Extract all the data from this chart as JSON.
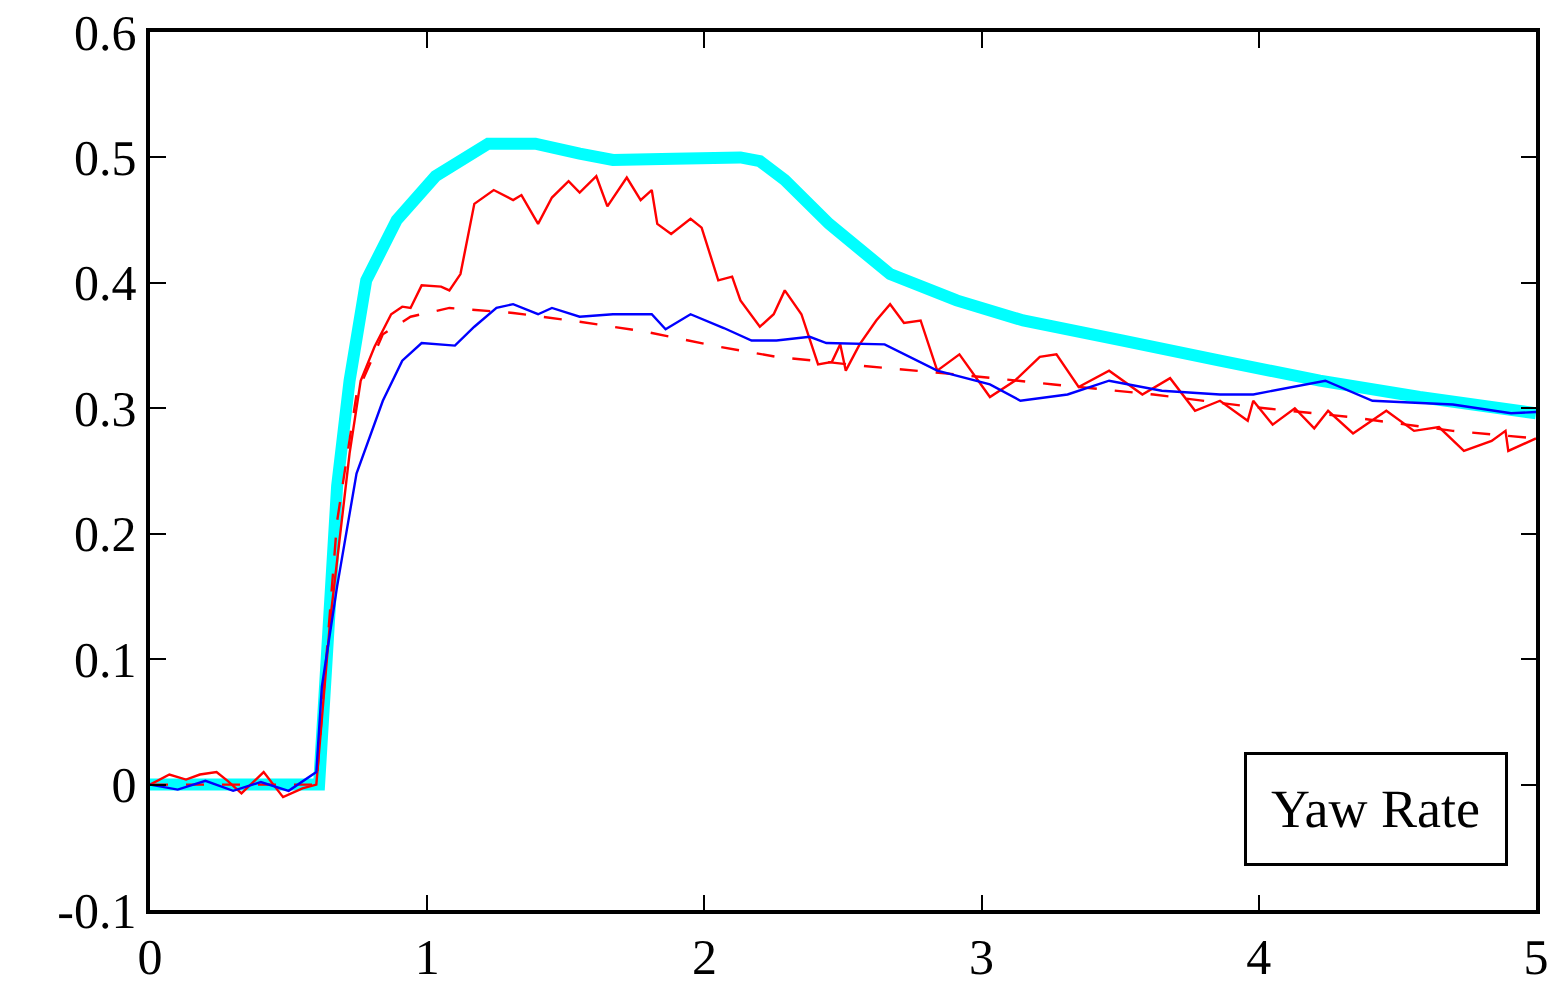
{
  "chart_data": {
    "type": "line",
    "xlim": [
      0,
      5
    ],
    "ylim": [
      -0.1,
      0.6
    ],
    "xticks": [
      0,
      1,
      2,
      3,
      4,
      5
    ],
    "yticks": [
      -0.1,
      0,
      0.1,
      0.2,
      0.3,
      0.4,
      0.5,
      0.6
    ],
    "marker": "none",
    "annotations": [
      "Yaw Rate"
    ],
    "series": [
      {
        "color": "#00ffff",
        "line_style": "solid",
        "x": [
          0,
          0.3,
          0.61,
          0.675,
          0.72,
          0.78,
          0.89,
          1.03,
          1.22,
          1.39,
          1.55,
          1.67,
          1.89,
          2.13,
          2.2,
          2.29,
          2.45,
          2.67,
          2.91,
          3.15,
          3.51,
          3.86,
          4.22,
          4.58,
          5
        ],
        "values": [
          0,
          0,
          0,
          0.238,
          0.322,
          0.402,
          0.45,
          0.485,
          0.511,
          0.511,
          0.503,
          0.498,
          0.499,
          0.5,
          0.497,
          0.482,
          0.447,
          0.407,
          0.386,
          0.37,
          0.354,
          0.338,
          0.322,
          0.309,
          0.296
        ]
      },
      {
        "color": "#ff0000",
        "line_style": "solid",
        "x": [
          0,
          0.07,
          0.13,
          0.18,
          0.24,
          0.28,
          0.33,
          0.41,
          0.48,
          0.55,
          0.6,
          0.65,
          0.72,
          0.76,
          0.81,
          0.87,
          0.91,
          0.94,
          0.98,
          1.05,
          1.08,
          1.12,
          1.17,
          1.24,
          1.31,
          1.34,
          1.4,
          1.45,
          1.51,
          1.55,
          1.61,
          1.65,
          1.72,
          1.77,
          1.81,
          1.83,
          1.88,
          1.95,
          1.99,
          2.05,
          2.1,
          2.13,
          2.2,
          2.25,
          2.29,
          2.35,
          2.41,
          2.46,
          2.49,
          2.51,
          2.56,
          2.62,
          2.67,
          2.72,
          2.78,
          2.84,
          2.92,
          3.03,
          3.12,
          3.21,
          3.27,
          3.35,
          3.46,
          3.58,
          3.68,
          3.77,
          3.86,
          3.96,
          3.98,
          4.05,
          4.13,
          4.2,
          4.25,
          4.34,
          4.46,
          4.56,
          4.65,
          4.74,
          4.84,
          4.89,
          4.9,
          5
        ],
        "values": [
          0,
          0.008,
          0.004,
          0.008,
          0.01,
          0.003,
          -0.007,
          0.01,
          -0.01,
          -0.003,
          0,
          0.131,
          0.264,
          0.322,
          0.349,
          0.375,
          0.381,
          0.38,
          0.398,
          0.397,
          0.394,
          0.407,
          0.463,
          0.474,
          0.466,
          0.47,
          0.447,
          0.468,
          0.481,
          0.472,
          0.485,
          0.461,
          0.484,
          0.466,
          0.474,
          0.447,
          0.439,
          0.451,
          0.444,
          0.402,
          0.405,
          0.386,
          0.365,
          0.375,
          0.394,
          0.375,
          0.335,
          0.337,
          0.351,
          0.33,
          0.351,
          0.37,
          0.383,
          0.368,
          0.37,
          0.33,
          0.343,
          0.309,
          0.322,
          0.341,
          0.343,
          0.317,
          0.33,
          0.311,
          0.324,
          0.298,
          0.306,
          0.29,
          0.306,
          0.287,
          0.3,
          0.284,
          0.298,
          0.28,
          0.298,
          0.282,
          0.285,
          0.266,
          0.274,
          0.282,
          0.266,
          0.276
        ]
      },
      {
        "color": "#ff0000",
        "line_style": "dashed",
        "x": [
          0,
          0.3,
          0.6,
          0.675,
          0.745,
          0.84,
          0.94,
          1.08,
          1.31,
          1.55,
          1.79,
          2.03,
          2.26,
          2.44,
          2.56,
          2.91,
          3.26,
          3.62,
          3.98,
          4.33,
          4.7,
          5
        ],
        "values": [
          0,
          0,
          0,
          0.21,
          0.311,
          0.359,
          0.373,
          0.38,
          0.376,
          0.369,
          0.361,
          0.35,
          0.341,
          0.337,
          0.334,
          0.327,
          0.319,
          0.311,
          0.301,
          0.293,
          0.282,
          0.276
        ]
      },
      {
        "color": "#0000ff",
        "line_style": "solid",
        "x": [
          0,
          0.1,
          0.2,
          0.3,
          0.4,
          0.5,
          0.6,
          0.62,
          0.675,
          0.745,
          0.84,
          0.91,
          0.98,
          1.1,
          1.17,
          1.25,
          1.31,
          1.4,
          1.45,
          1.55,
          1.67,
          1.81,
          1.86,
          1.95,
          2.07,
          2.17,
          2.26,
          2.38,
          2.44,
          2.65,
          2.84,
          3.03,
          3.14,
          3.31,
          3.46,
          3.65,
          3.86,
          3.98,
          4.24,
          4.41,
          4.7,
          4.91,
          5
        ],
        "values": [
          0,
          -0.004,
          0.003,
          -0.005,
          0.002,
          -0.005,
          0.01,
          0.078,
          0.158,
          0.248,
          0.306,
          0.338,
          0.352,
          0.35,
          0.365,
          0.38,
          0.383,
          0.375,
          0.38,
          0.373,
          0.375,
          0.375,
          0.363,
          0.375,
          0.364,
          0.354,
          0.354,
          0.357,
          0.352,
          0.351,
          0.33,
          0.319,
          0.306,
          0.311,
          0.322,
          0.314,
          0.311,
          0.311,
          0.322,
          0.306,
          0.303,
          0.296,
          0.297
        ]
      }
    ]
  }
}
